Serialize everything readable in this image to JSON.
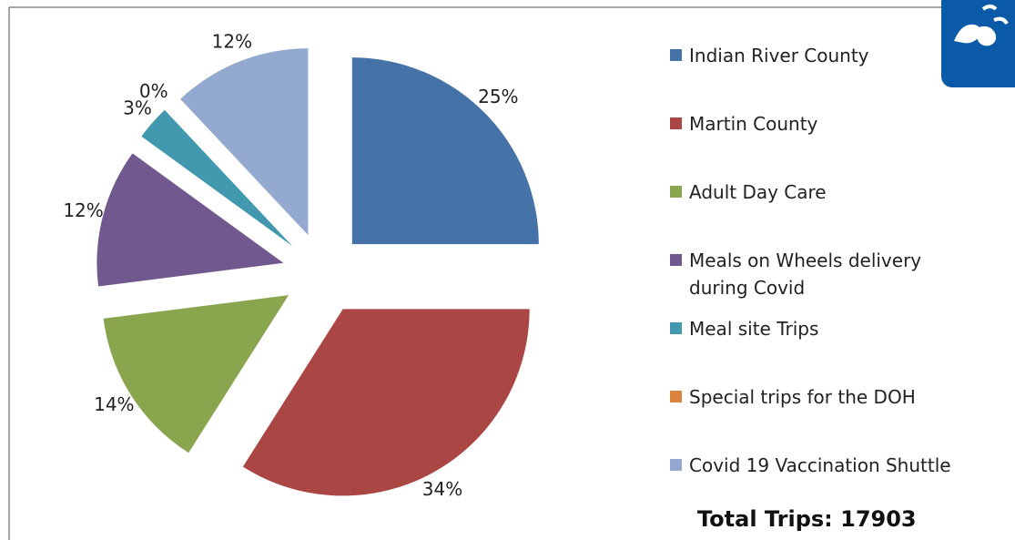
{
  "chart_data": {
    "type": "pie",
    "categories": [
      "Indian River County",
      "Martin County",
      "Adult Day Care",
      "Meals on Wheels delivery during Covid",
      "Meal site Trips",
      "Special trips for the DOH",
      "Covid 19 Vaccination Shuttle"
    ],
    "values": [
      25,
      34,
      14,
      12,
      3,
      0,
      12
    ],
    "value_labels": [
      "25%",
      "34%",
      "14%",
      "12%",
      "3%",
      "0%",
      "12%"
    ],
    "colors": [
      "#4572a7",
      "#aa4643",
      "#89a54e",
      "#71588f",
      "#4198af",
      "#db843d",
      "#93a9cf"
    ],
    "annotation": "Total Trips: 17903"
  }
}
